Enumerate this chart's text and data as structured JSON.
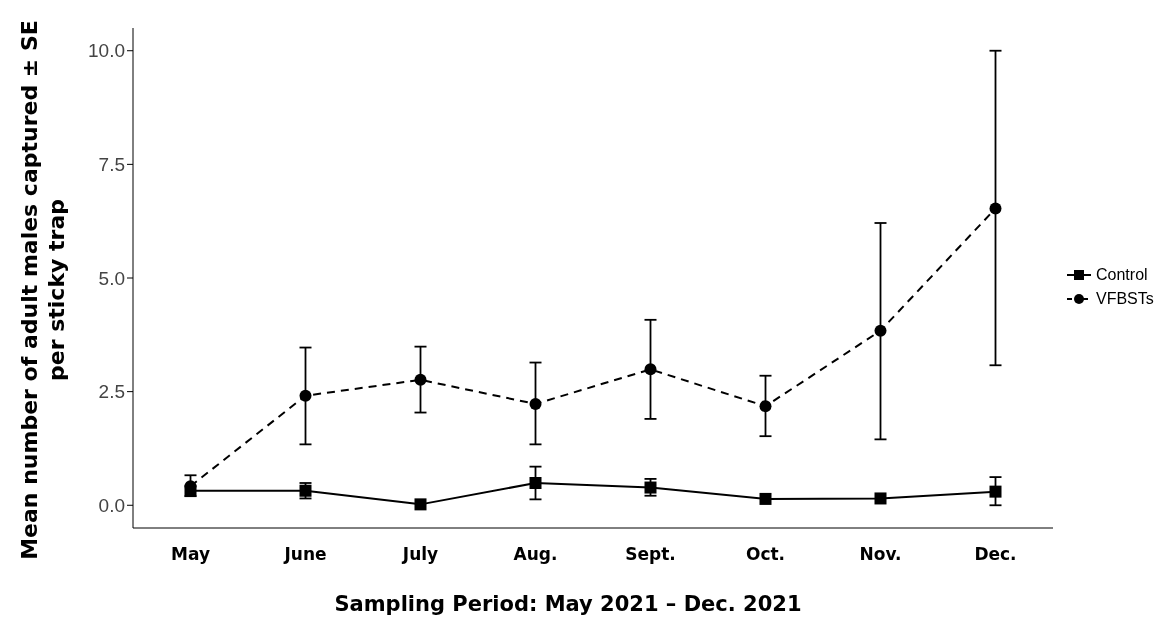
{
  "chart_data": {
    "type": "line",
    "xlabel": "Sampling Period: May 2021 – Dec. 2021",
    "ylabel": "Mean number of adult males captured ± SE per sticky trap",
    "categories": [
      "May",
      "June",
      "July",
      "Aug.",
      "Sept.",
      "Oct.",
      "Nov.",
      "Dec."
    ],
    "series": [
      {
        "name": "Control",
        "color": "#000000",
        "marker": "square",
        "line_style": "solid",
        "values": [
          0.32,
          0.32,
          0.02,
          0.49,
          0.39,
          0.14,
          0.15,
          0.3
        ],
        "errors": [
          null,
          [
            0.15,
            0.49
          ],
          null,
          [
            0.13,
            0.85
          ],
          [
            0.21,
            0.58
          ],
          null,
          null,
          [
            0.0,
            0.62
          ]
        ]
      },
      {
        "name": "VFBSTs",
        "color": "#000000",
        "marker": "circle",
        "line_style": "dashed",
        "values": [
          0.42,
          2.41,
          2.76,
          2.23,
          2.99,
          2.18,
          3.84,
          6.53
        ],
        "errors": [
          [
            0.2,
            0.66
          ],
          [
            1.34,
            3.47
          ],
          [
            2.04,
            3.49
          ],
          [
            1.34,
            3.14
          ],
          [
            1.9,
            4.08
          ],
          [
            1.52,
            2.85
          ],
          [
            1.45,
            6.21
          ],
          [
            3.08,
            10.0
          ]
        ]
      }
    ],
    "ylim": [
      -0.5,
      10.5
    ],
    "yticks": [
      {
        "value": 0,
        "label": "0.0"
      },
      {
        "value": 2.5,
        "label": "2.5"
      },
      {
        "value": 5,
        "label": "5.0"
      },
      {
        "value": 7.5,
        "label": "7.5"
      },
      {
        "value": 10,
        "label": "10.0"
      }
    ],
    "grid": false,
    "legend": "right"
  }
}
